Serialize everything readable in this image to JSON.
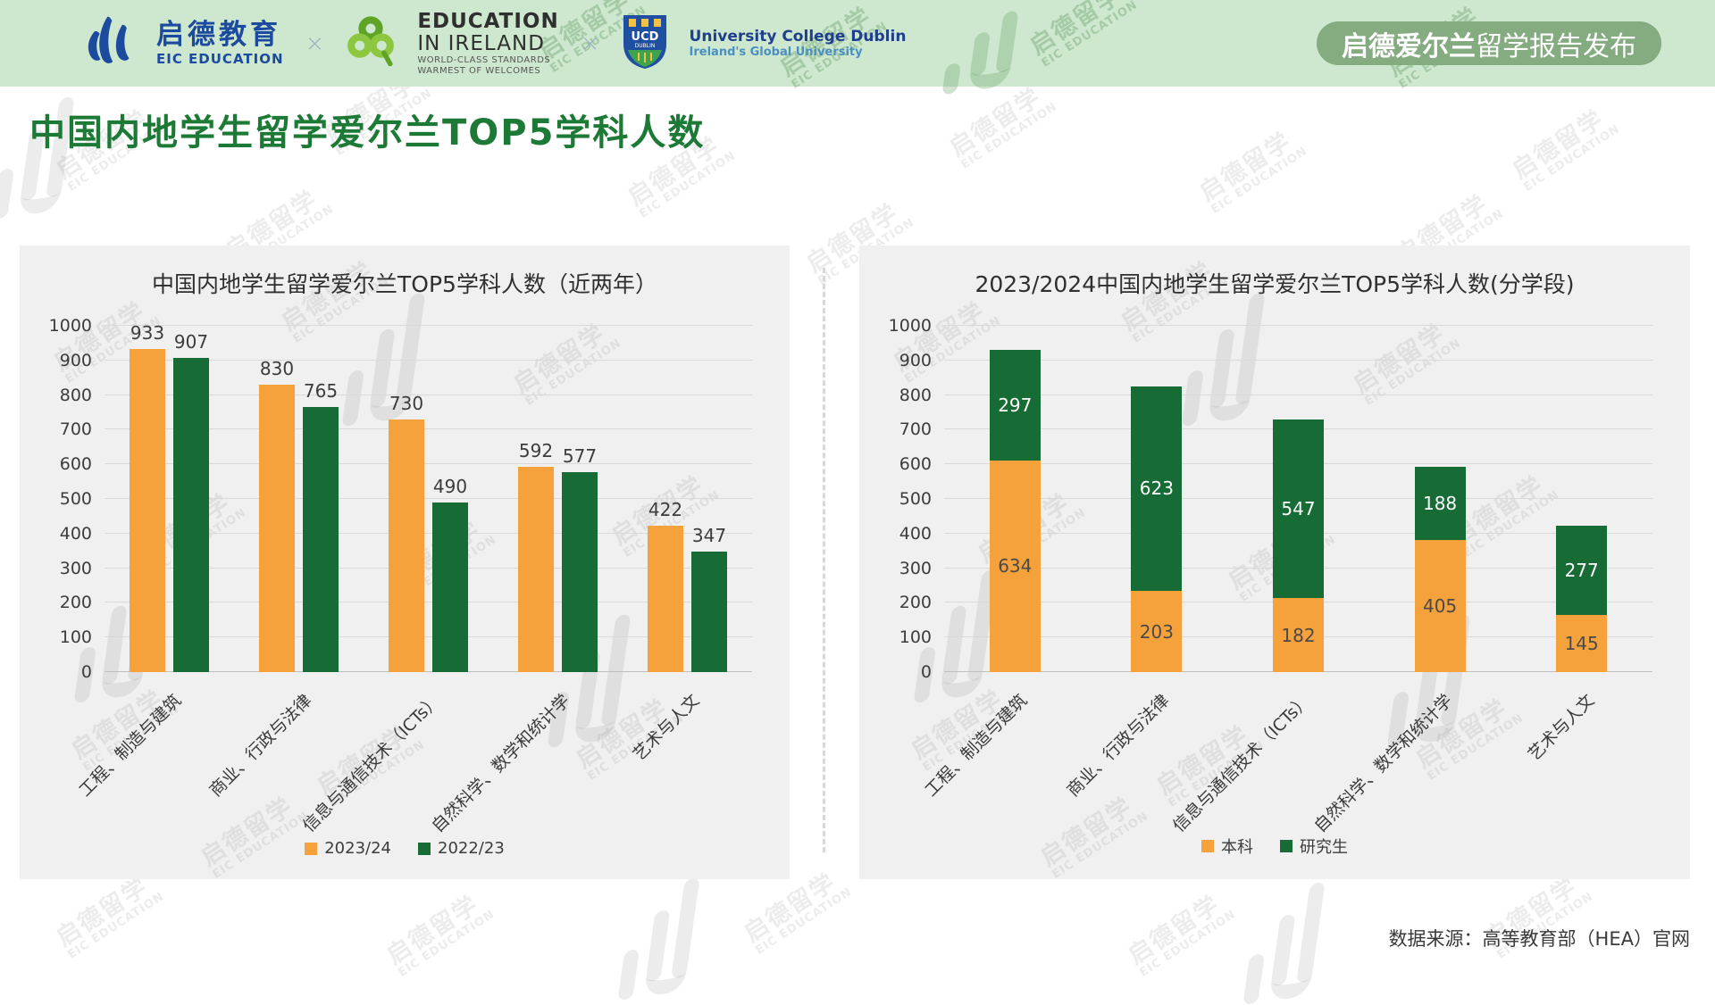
{
  "header": {
    "eic": {
      "cn": "启德教育",
      "en": "EIC EDUCATION"
    },
    "sep": "×",
    "education_in_ireland": {
      "line1": "EDUCATION",
      "line2": "IN IRELAND",
      "sub1": "WORLD-CLASS STANDARDS",
      "sub2": "WARMEST OF WELCOMES"
    },
    "ucd": {
      "crest_top": "UCD",
      "crest_sub": "DUBLIN",
      "line1": "University College Dublin",
      "line2": "Ireland's Global University"
    },
    "badge": {
      "bold": "启德爱尔兰",
      "rest": "留学报告发布"
    }
  },
  "page_title": "中国内地学生留学爱尔兰TOP5学科人数",
  "source_note": "数据来源：高等教育部（HEA）官网",
  "watermark": {
    "line1": "启德留学",
    "line2": "EIC EDUCATION"
  },
  "colors": {
    "orange": "#F5A23C",
    "green": "#166C34",
    "header_bg": "#CEE8CF",
    "badge_bg": "#85AB80",
    "title_green": "#1D7A36",
    "panel_bg": "#F0F0F0"
  },
  "chart_data": [
    {
      "type": "bar",
      "title": "中国内地学生留学爱尔兰TOP5学科人数（近两年）",
      "categories": [
        "工程、制造与建筑",
        "商业、行政与法律",
        "信息与通信技术（ICTs）",
        "自然科学、数学和统计学",
        "艺术与人文"
      ],
      "series": [
        {
          "name": "2023/24",
          "color_key": "orange",
          "values": [
            933,
            830,
            730,
            592,
            422
          ]
        },
        {
          "name": "2022/23",
          "color_key": "green",
          "values": [
            907,
            765,
            490,
            577,
            347
          ]
        }
      ],
      "xlabel": "",
      "ylabel": "",
      "ylim": [
        0,
        1000
      ],
      "ytick_step": 100,
      "grid": true,
      "legend_position": "bottom"
    },
    {
      "type": "stacked-bar",
      "title": "2023/2024中国内地学生留学爱尔兰TOP5学科人数(分学段)",
      "categories": [
        "工程、制造与建筑",
        "商业、行政与法律",
        "信息与通信技术（ICTs）",
        "自然科学、数学和统计学",
        "艺术与人文"
      ],
      "series": [
        {
          "name": "本科",
          "color_key": "orange",
          "values": [
            634,
            203,
            182,
            405,
            145
          ]
        },
        {
          "name": "研究生",
          "color_key": "green",
          "values": [
            297,
            623,
            547,
            188,
            277
          ]
        }
      ],
      "xlabel": "",
      "ylabel": "",
      "ylim": [
        0,
        1000
      ],
      "ytick_step": 100,
      "grid": true,
      "legend_position": "bottom"
    }
  ]
}
